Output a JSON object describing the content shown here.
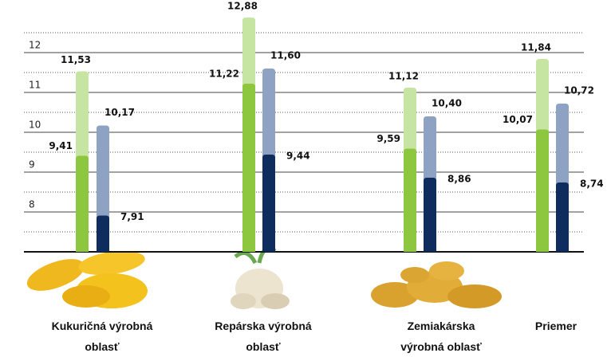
{
  "chart_data": {
    "type": "overlapping-bar",
    "categories": [
      "Kukuričná výrobná oblasť",
      "Repárska výrobná oblasť",
      "Zemiakárska výrobná oblasť",
      "Priemer"
    ],
    "series": [
      {
        "color": "#c6e4a2",
        "values": [
          11.53,
          12.88,
          11.12,
          11.84
        ],
        "value_labels": [
          "11,53",
          "12,88",
          "11,12",
          "11,84"
        ]
      },
      {
        "color": "#8dc63f",
        "values": [
          9.41,
          11.22,
          9.59,
          10.07
        ],
        "value_labels": [
          "9,41",
          "11,22",
          "9,59",
          "10,07"
        ]
      },
      {
        "color": "#8ea3c3",
        "values": [
          10.17,
          11.6,
          10.4,
          10.72
        ],
        "value_labels": [
          "10,17",
          "11,60",
          "10,40",
          "10,72"
        ]
      },
      {
        "color": "#0f2c5e",
        "values": [
          7.91,
          9.44,
          8.86,
          8.74
        ],
        "value_labels": [
          "7,91",
          "9,44",
          "8,86",
          "8,74"
        ]
      }
    ],
    "ylim": [
      7,
      13
    ],
    "yticks": [
      8,
      9,
      10,
      11,
      12
    ],
    "minor_yticks": [
      7.5,
      8.5,
      9.5,
      10.5,
      11.5,
      12.5
    ],
    "grid": true
  }
}
